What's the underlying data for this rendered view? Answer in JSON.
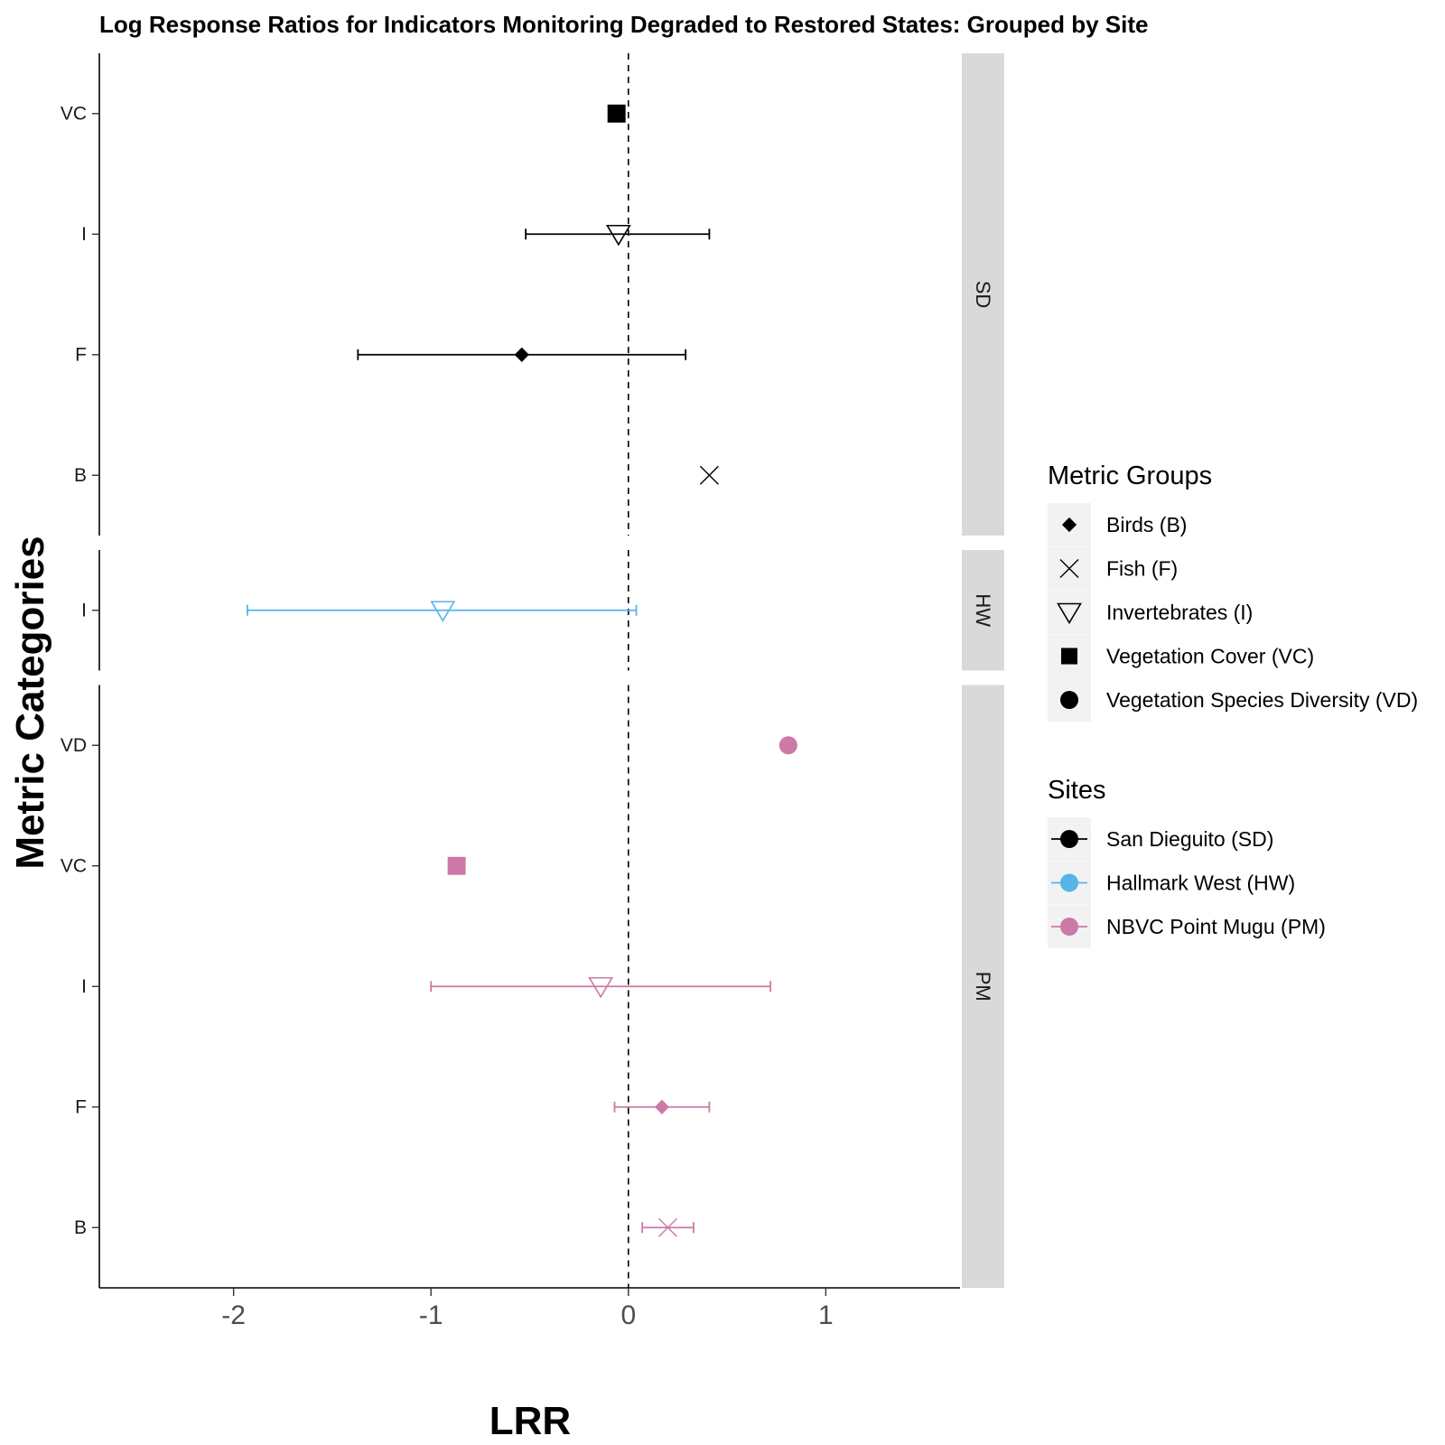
{
  "chart_data": {
    "type": "scatter",
    "title": "Log Response Ratios for Indicators Monitoring Degraded to Restored States: Grouped by Site",
    "xlabel": "LRR",
    "ylabel": "Metric Categories",
    "xlim": [
      -2.68,
      1.68
    ],
    "x_ticks": [
      {
        "value": -2,
        "label": "-2"
      },
      {
        "value": -1,
        "label": "-1"
      },
      {
        "value": 0,
        "label": "0"
      },
      {
        "value": 1,
        "label": "1"
      }
    ],
    "reference_line": {
      "x": 0,
      "style": "dashed"
    },
    "facets": [
      {
        "id": "SD",
        "label": "SD",
        "color": "#000000",
        "categories": [
          "VC",
          "I",
          "F",
          "B"
        ],
        "points": [
          {
            "category": "VC",
            "group": "VC",
            "lrr": -0.06,
            "lower": null,
            "upper": null
          },
          {
            "category": "I",
            "group": "I",
            "lrr": -0.05,
            "lower": -0.52,
            "upper": 0.41
          },
          {
            "category": "F",
            "group": "B",
            "lrr": -0.54,
            "lower": -1.37,
            "upper": 0.29
          },
          {
            "category": "B",
            "group": "F",
            "lrr": 0.41,
            "lower": null,
            "upper": null
          }
        ]
      },
      {
        "id": "HW",
        "label": "HW",
        "color": "#56B4E9",
        "categories": [
          "I"
        ],
        "points": [
          {
            "category": "I",
            "group": "I",
            "lrr": -0.94,
            "lower": -1.93,
            "upper": 0.04
          }
        ]
      },
      {
        "id": "PM",
        "label": "PM",
        "color": "#CC79A7",
        "categories": [
          "VD",
          "VC",
          "I",
          "F",
          "B"
        ],
        "points": [
          {
            "category": "VD",
            "group": "VD",
            "lrr": 0.81,
            "lower": null,
            "upper": null
          },
          {
            "category": "VC",
            "group": "VC",
            "lrr": -0.87,
            "lower": null,
            "upper": null
          },
          {
            "category": "I",
            "group": "I",
            "lrr": -0.14,
            "lower": -1.0,
            "upper": 0.72
          },
          {
            "category": "F",
            "group": "B",
            "lrr": 0.17,
            "lower": -0.07,
            "upper": 0.41
          },
          {
            "category": "B",
            "group": "F",
            "lrr": 0.2,
            "lower": 0.07,
            "upper": 0.33
          }
        ]
      }
    ],
    "legend_groups": {
      "title": "Metric Groups",
      "items": [
        {
          "key": "B",
          "label": "Birds (B)",
          "shape": "diamond"
        },
        {
          "key": "F",
          "label": "Fish (F)",
          "shape": "cross"
        },
        {
          "key": "I",
          "label": "Invertebrates (I)",
          "shape": "triangle-down"
        },
        {
          "key": "VC",
          "label": "Vegetation Cover (VC)",
          "shape": "square"
        },
        {
          "key": "VD",
          "label": "Vegetation Species Diversity (VD)",
          "shape": "circle"
        }
      ]
    },
    "legend_sites": {
      "title": "Sites",
      "items": [
        {
          "key": "SD",
          "label": "San Dieguito (SD)",
          "color": "#000000"
        },
        {
          "key": "HW",
          "label": "Hallmark West (HW)",
          "color": "#56B4E9"
        },
        {
          "key": "PM",
          "label": "NBVC Point Mugu (PM)",
          "color": "#CC79A7"
        }
      ]
    },
    "legend_placement": "right",
    "grid": false
  }
}
